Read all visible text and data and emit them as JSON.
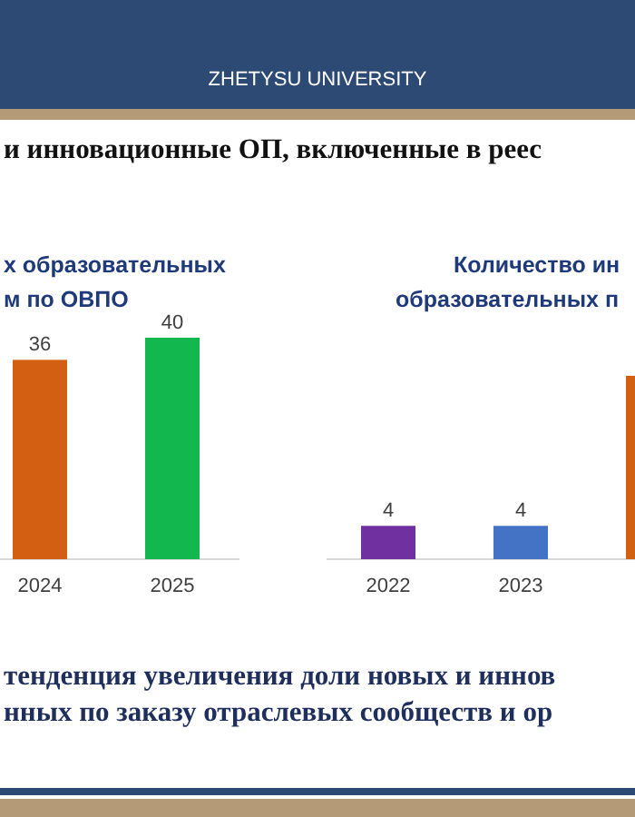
{
  "chart_data": [
    {
      "type": "bar",
      "title": "х образовательных\nм по ОВПО",
      "categories": [
        "2024",
        "2025"
      ],
      "values": [
        36,
        40
      ],
      "colors": [
        "#d35f12",
        "#12b84e"
      ],
      "data_labels": true,
      "annotations": [
        "ZHETYSU UNIVERSITY",
        "и инновационные ОП, включенные в реес",
        "тенденция увеличения доли новых и иннов\nнных по заказу отраслевых сообществ и ор"
      ]
    },
    {
      "type": "bar",
      "title": "Количество ин\nобразовательных п",
      "categories": [
        "2022",
        "2023",
        null
      ],
      "values": [
        4,
        4,
        22
      ],
      "colors": [
        "#7030a0",
        "#4472c4",
        "#d35f12"
      ],
      "value_labels": [
        "4",
        "4",
        null
      ]
    }
  ]
}
